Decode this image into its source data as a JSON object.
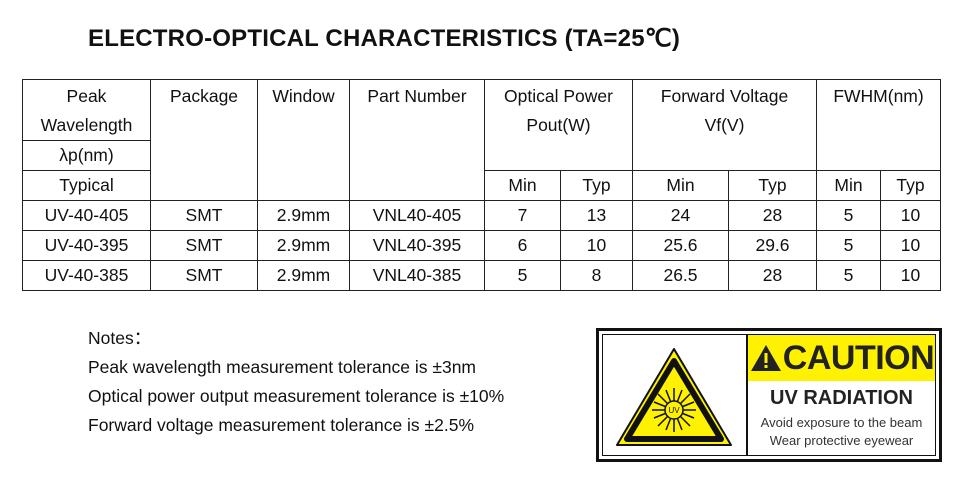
{
  "title": "ELECTRO-OPTICAL CHARACTERISTICS (TA=25℃)",
  "table": {
    "headers": {
      "peak_line1": "Peak",
      "peak_line2": "Wavelength",
      "peak_line3": "λp(nm)",
      "peak_line4": "Typical",
      "package": "Package",
      "window": "Window",
      "part_number": "Part Number",
      "optical_line1": "Optical Power",
      "optical_line2": "Pout(W)",
      "forward_line1": "Forward Voltage",
      "forward_line2": "Vf(V)",
      "fwhm": "FWHM(nm)",
      "min": "Min",
      "typ": "Typ"
    },
    "rows": [
      [
        "UV-40-405",
        "SMT",
        "2.9mm",
        "VNL40-405",
        "7",
        "13",
        "24",
        "28",
        "5",
        "10"
      ],
      [
        "UV-40-395",
        "SMT",
        "2.9mm",
        "VNL40-395",
        "6",
        "10",
        "25.6",
        "29.6",
        "5",
        "10"
      ],
      [
        "UV-40-385",
        "SMT",
        "2.9mm",
        "VNL40-385",
        "5",
        "8",
        "26.5",
        "28",
        "5",
        "10"
      ]
    ]
  },
  "notes": {
    "heading": "Notes：",
    "items": [
      "Peak wavelength measurement tolerance is ±3nm",
      "Optical power output measurement tolerance is ±10%",
      "Forward voltage measurement tolerance is ±2.5%"
    ]
  },
  "sign": {
    "caution": "CAUTION",
    "headline": "UV RADIATION",
    "line1": "Avoid exposure to the beam",
    "line2": "Wear protective eyewear",
    "symbol_text": "UV",
    "colors": {
      "yellow": "#fff200",
      "black": "#111111"
    }
  }
}
